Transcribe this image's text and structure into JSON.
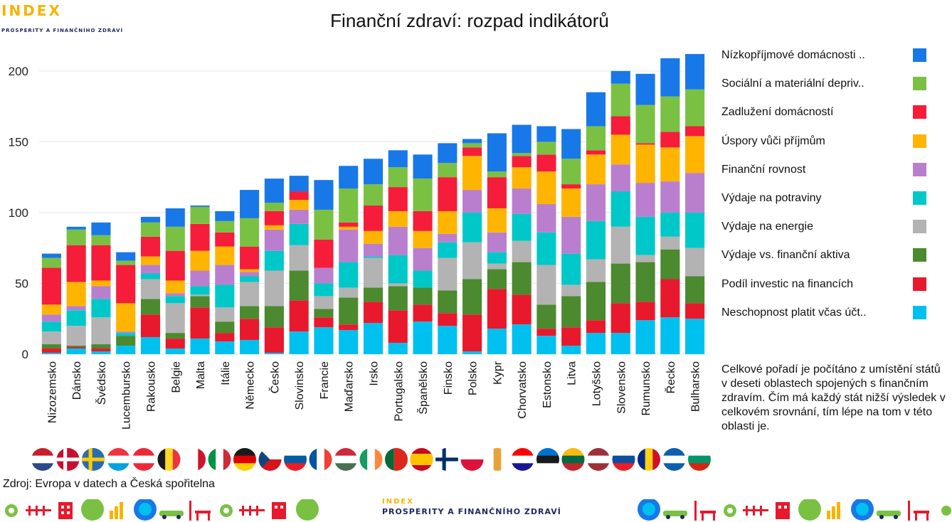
{
  "brand": {
    "logo_word": "INDEX",
    "logo_sub": "PROSPERITY A FINANČNÍHO ZDRAVÍ"
  },
  "title": "Finanční zdraví: rozpad indikátorů",
  "source": "Zdroj: Evropa v datech a Česká spořitelna",
  "note": "Celkové pořadí je počítáno z umístění států v deseti oblastech spojených s finančním zdravím. Čím má každý stát nižší výsledek v celkovém srovnání, tím lépe na tom v této oblasti je.",
  "chart_data": {
    "type": "bar",
    "stacked": true,
    "title": "Finanční zdraví: rozpad indikátorů",
    "xlabel": "",
    "ylabel": "",
    "ylim": [
      0,
      220
    ],
    "yticks": [
      0,
      50,
      100,
      150,
      200
    ],
    "grid": true,
    "legend_position": "right",
    "categories": [
      "Nizozemsko",
      "Dánsko",
      "Švédsko",
      "Lucembursko",
      "Rakousko",
      "Belgie",
      "Malta",
      "Itálie",
      "Německo",
      "Česko",
      "Slovinsko",
      "Francie",
      "Maďarsko",
      "Irsko",
      "Portugalsko",
      "Španělsko",
      "Finsko",
      "Polsko",
      "Kypr",
      "Chorvatsko",
      "Estonsko",
      "Litva",
      "Lotyšsko",
      "Slovensko",
      "Rumunsko",
      "Řecko",
      "Bulharsko"
    ],
    "series": [
      {
        "name": "Neschopnost platit včas účt..",
        "color": "#00c0f0",
        "values": [
          1,
          4,
          2,
          6,
          12,
          4,
          11,
          9,
          10,
          1,
          16,
          19,
          17,
          22,
          8,
          23,
          20,
          2,
          18,
          21,
          13,
          6,
          15,
          15,
          24,
          26,
          25
        ]
      },
      {
        "name": "Podíl investic na financích",
        "color": "#e8192c",
        "values": [
          3,
          1,
          2,
          0,
          16,
          7,
          22,
          6,
          15,
          18,
          22,
          7,
          4,
          15,
          23,
          12,
          9,
          26,
          28,
          21,
          5,
          13,
          9,
          21,
          13,
          27,
          11
        ]
      },
      {
        "name": "Výdaje vs. finanční aktiva",
        "color": "#4b8a2e",
        "values": [
          3,
          1,
          3,
          7,
          11,
          4,
          8,
          8,
          9,
          15,
          21,
          6,
          19,
          10,
          17,
          12,
          16,
          25,
          14,
          23,
          17,
          22,
          27,
          28,
          28,
          21,
          19
        ]
      },
      {
        "name": "Výdaje na energie",
        "color": "#b3b3b3",
        "values": [
          9,
          14,
          19,
          0,
          14,
          21,
          1,
          10,
          17,
          25,
          18,
          9,
          7,
          21,
          2,
          0,
          23,
          26,
          4,
          15,
          28,
          8,
          16,
          26,
          5,
          9,
          20
        ]
      },
      {
        "name": "Výdaje na potraviny",
        "color": "#00c8c8",
        "values": [
          7,
          11,
          13,
          2,
          4,
          5,
          6,
          16,
          4,
          14,
          15,
          9,
          18,
          1,
          20,
          12,
          11,
          21,
          8,
          19,
          23,
          22,
          27,
          25,
          27,
          17,
          25
        ]
      },
      {
        "name": "Finanční rovnost",
        "color": "#b97fce",
        "values": [
          5,
          3,
          9,
          1,
          6,
          2,
          11,
          14,
          3,
          15,
          10,
          11,
          23,
          9,
          20,
          16,
          6,
          16,
          14,
          18,
          20,
          26,
          26,
          19,
          24,
          22,
          28
        ]
      },
      {
        "name": "Úspory vůči příjmům",
        "color": "#ffb400",
        "values": [
          7,
          17,
          4,
          20,
          6,
          9,
          14,
          13,
          2,
          3,
          7,
          0,
          2,
          9,
          11,
          12,
          16,
          24,
          17,
          15,
          23,
          20,
          21,
          21,
          27,
          24,
          26
        ]
      },
      {
        "name": "Zadlužení domácností",
        "color": "#f51d3a",
        "values": [
          26,
          26,
          25,
          27,
          14,
          21,
          19,
          10,
          16,
          10,
          6,
          20,
          3,
          18,
          17,
          14,
          24,
          6,
          22,
          8,
          12,
          3,
          3,
          13,
          1,
          11,
          7
        ]
      },
      {
        "name": "Sociální a materiální depriv..",
        "color": "#7ac143",
        "values": [
          7,
          11,
          7,
          3,
          10,
          17,
          12,
          8,
          20,
          6,
          0,
          21,
          24,
          15,
          14,
          23,
          10,
          3,
          4,
          2,
          9,
          18,
          17,
          23,
          27,
          25,
          26
        ]
      },
      {
        "name": "Nízkopříjmové domácnosti ..",
        "color": "#1878e8",
        "values": [
          3,
          2,
          9,
          6,
          4,
          13,
          1,
          7,
          20,
          17,
          11,
          21,
          16,
          18,
          12,
          17,
          14,
          3,
          27,
          20,
          11,
          21,
          24,
          9,
          22,
          27,
          25
        ]
      }
    ]
  },
  "flags": [
    {
      "country": "Nizozemsko",
      "stripes": "h",
      "colors": [
        "#c81e2c",
        "#ffffff",
        "#2a4a8c"
      ]
    },
    {
      "country": "Dánsko",
      "stripes": "cross",
      "colors": [
        "#c8102e",
        "#ffffff"
      ]
    },
    {
      "country": "Švédsko",
      "stripes": "cross",
      "colors": [
        "#2a6cb0",
        "#fecc00"
      ]
    },
    {
      "country": "Lucembursko",
      "stripes": "h",
      "colors": [
        "#ef3340",
        "#ffffff",
        "#00a3e0"
      ]
    },
    {
      "country": "Rakousko",
      "stripes": "h",
      "colors": [
        "#ed2939",
        "#ffffff",
        "#ed2939"
      ]
    },
    {
      "country": "Belgie",
      "stripes": "v",
      "colors": [
        "#1a1a1a",
        "#fdda24",
        "#ef3340"
      ]
    },
    {
      "country": "Malta",
      "stripes": "v",
      "colors": [
        "#ffffff",
        "#ffffff",
        "#cf142b"
      ]
    },
    {
      "country": "Itálie",
      "stripes": "v",
      "colors": [
        "#009246",
        "#ffffff",
        "#ce2b37"
      ]
    },
    {
      "country": "Německo",
      "stripes": "h",
      "colors": [
        "#1a1a1a",
        "#dd0000",
        "#ffce00"
      ]
    },
    {
      "country": "Česko",
      "stripes": "cz",
      "colors": [
        "#ffffff",
        "#d7141a",
        "#11457e"
      ]
    },
    {
      "country": "Slovinsko",
      "stripes": "h",
      "colors": [
        "#ffffff",
        "#005da4",
        "#ed1c24"
      ]
    },
    {
      "country": "Francie",
      "stripes": "v",
      "colors": [
        "#0055a4",
        "#ffffff",
        "#ef4135"
      ]
    },
    {
      "country": "Maďarsko",
      "stripes": "h",
      "colors": [
        "#ce2939",
        "#ffffff",
        "#477050"
      ]
    },
    {
      "country": "Irsko",
      "stripes": "v",
      "colors": [
        "#169b62",
        "#ffffff",
        "#ff883e"
      ]
    },
    {
      "country": "Portugalsko",
      "stripes": "v2",
      "colors": [
        "#046a38",
        "#da291c"
      ]
    },
    {
      "country": "Španělsko",
      "stripes": "h3",
      "colors": [
        "#c60b1e",
        "#ffc400",
        "#c60b1e"
      ]
    },
    {
      "country": "Finsko",
      "stripes": "cross",
      "colors": [
        "#ffffff",
        "#002f6c"
      ]
    },
    {
      "country": "Polsko",
      "stripes": "h2",
      "colors": [
        "#ffffff",
        "#dc143c"
      ]
    },
    {
      "country": "Kypr",
      "stripes": "v",
      "colors": [
        "#ffffff",
        "#e8a23a",
        "#ffffff"
      ]
    },
    {
      "country": "Chorvatsko",
      "stripes": "h",
      "colors": [
        "#ff0000",
        "#ffffff",
        "#171796"
      ]
    },
    {
      "country": "Estonsko",
      "stripes": "h",
      "colors": [
        "#0072ce",
        "#1a1a1a",
        "#ffffff"
      ]
    },
    {
      "country": "Litva",
      "stripes": "h",
      "colors": [
        "#fdb913",
        "#006a44",
        "#c1272d"
      ]
    },
    {
      "country": "Lotyšsko",
      "stripes": "h",
      "colors": [
        "#9e3039",
        "#ffffff",
        "#9e3039"
      ]
    },
    {
      "country": "Slovensko",
      "stripes": "h",
      "colors": [
        "#ffffff",
        "#0b4ea2",
        "#ee1c25"
      ]
    },
    {
      "country": "Rumunsko",
      "stripes": "v",
      "colors": [
        "#002b7f",
        "#fcd116",
        "#ce1126"
      ]
    },
    {
      "country": "Řecko",
      "stripes": "h",
      "colors": [
        "#0d5eaf",
        "#ffffff",
        "#0d5eaf"
      ]
    },
    {
      "country": "Bulharsko",
      "stripes": "h",
      "colors": [
        "#ffffff",
        "#00966e",
        "#d62612"
      ]
    }
  ]
}
